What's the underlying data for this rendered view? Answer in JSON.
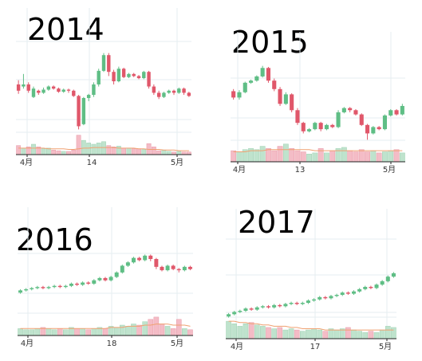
{
  "colors": {
    "up": "#5fbe85",
    "down": "#e0576a",
    "vol_up": "#bfe3cd",
    "vol_down": "#f4bcc6",
    "ma": "#f0a070",
    "grid": "#e6eef0",
    "axis": "#222222"
  },
  "chart_data": [
    {
      "type": "candlestick",
      "title": "2014",
      "x_tick_labels": [
        "4月",
        "14",
        "5月"
      ],
      "grid": true,
      "candles": [
        {
          "o": 30,
          "c": 24,
          "h": 34,
          "l": 21
        },
        {
          "o": 28,
          "c": 30,
          "h": 40,
          "l": 26
        },
        {
          "o": 30,
          "c": 24,
          "h": 32,
          "l": 22
        },
        {
          "o": 18,
          "c": 26,
          "h": 28,
          "l": 17
        },
        {
          "o": 24,
          "c": 22,
          "h": 25,
          "l": 20
        },
        {
          "o": 22,
          "c": 25,
          "h": 27,
          "l": 21
        },
        {
          "o": 25,
          "c": 28,
          "h": 29,
          "l": 24
        },
        {
          "o": 28,
          "c": 26,
          "h": 29,
          "l": 25
        },
        {
          "o": 26,
          "c": 23,
          "h": 27,
          "l": 22
        },
        {
          "o": 23,
          "c": 25,
          "h": 26,
          "l": 22
        },
        {
          "o": 25,
          "c": 24,
          "h": 26,
          "l": 22
        },
        {
          "o": 24,
          "c": 19,
          "h": 25,
          "l": 18
        },
        {
          "o": 19,
          "c": -10,
          "h": 20,
          "l": -13
        },
        {
          "o": -8,
          "c": 17,
          "h": 18,
          "l": -9
        },
        {
          "o": 17,
          "c": 20,
          "h": 21,
          "l": 14
        },
        {
          "o": 20,
          "c": 30,
          "h": 32,
          "l": 18
        },
        {
          "o": 30,
          "c": 43,
          "h": 45,
          "l": 28
        },
        {
          "o": 43,
          "c": 58,
          "h": 60,
          "l": 42
        },
        {
          "o": 58,
          "c": 42,
          "h": 60,
          "l": 38
        },
        {
          "o": 42,
          "c": 33,
          "h": 44,
          "l": 30
        },
        {
          "o": 33,
          "c": 45,
          "h": 47,
          "l": 32
        },
        {
          "o": 45,
          "c": 37,
          "h": 46,
          "l": 36
        },
        {
          "o": 37,
          "c": 40,
          "h": 41,
          "l": 36
        },
        {
          "o": 40,
          "c": 38,
          "h": 41,
          "l": 37
        },
        {
          "o": 38,
          "c": 36,
          "h": 39,
          "l": 35
        },
        {
          "o": 36,
          "c": 42,
          "h": 43,
          "l": 35
        },
        {
          "o": 42,
          "c": 28,
          "h": 43,
          "l": 26
        },
        {
          "o": 28,
          "c": 22,
          "h": 30,
          "l": 20
        },
        {
          "o": 22,
          "c": 18,
          "h": 24,
          "l": 16
        },
        {
          "o": 18,
          "c": 22,
          "h": 23,
          "l": 17
        },
        {
          "o": 22,
          "c": 24,
          "h": 25,
          "l": 21
        },
        {
          "o": 24,
          "c": 22,
          "h": 25,
          "l": 20
        },
        {
          "o": 22,
          "c": 26,
          "h": 27,
          "l": 21
        },
        {
          "o": 26,
          "c": 22,
          "h": 27,
          "l": 20
        },
        {
          "o": 22,
          "c": 19,
          "h": 23,
          "l": 18
        }
      ],
      "volume": [
        14,
        10,
        12,
        16,
        12,
        9,
        10,
        7,
        6,
        5,
        5,
        7,
        30,
        22,
        18,
        16,
        18,
        20,
        14,
        12,
        13,
        10,
        10,
        9,
        9,
        8,
        17,
        12,
        6,
        7,
        5,
        4,
        5,
        4,
        4
      ],
      "volume_ma": [
        10,
        10,
        10,
        10,
        10,
        10,
        9,
        9,
        9,
        9,
        8,
        8,
        9,
        10,
        10,
        11,
        11,
        11,
        11,
        11,
        10,
        10,
        10,
        10,
        9,
        9,
        8,
        8,
        8,
        7,
        7,
        7,
        6,
        6,
        6
      ]
    },
    {
      "type": "candlestick",
      "title": "2015",
      "x_tick_labels": [
        "4月",
        "13",
        "5月"
      ],
      "grid": true,
      "candles": [
        {
          "o": 38,
          "c": 32,
          "h": 40,
          "l": 30
        },
        {
          "o": 32,
          "c": 37,
          "h": 39,
          "l": 30
        },
        {
          "o": 37,
          "c": 46,
          "h": 47,
          "l": 36
        },
        {
          "o": 46,
          "c": 48,
          "h": 49,
          "l": 45
        },
        {
          "o": 48,
          "c": 52,
          "h": 53,
          "l": 47
        },
        {
          "o": 52,
          "c": 60,
          "h": 62,
          "l": 51
        },
        {
          "o": 60,
          "c": 48,
          "h": 61,
          "l": 46
        },
        {
          "o": 48,
          "c": 40,
          "h": 50,
          "l": 38
        },
        {
          "o": 40,
          "c": 26,
          "h": 42,
          "l": 24
        },
        {
          "o": 26,
          "c": 35,
          "h": 37,
          "l": 25
        },
        {
          "o": 35,
          "c": 20,
          "h": 36,
          "l": 18
        },
        {
          "o": 20,
          "c": 8,
          "h": 22,
          "l": 6
        },
        {
          "o": 8,
          "c": 0,
          "h": 9,
          "l": -2
        },
        {
          "o": 0,
          "c": 2,
          "h": 3,
          "l": -1
        },
        {
          "o": 2,
          "c": 8,
          "h": 9,
          "l": 1
        },
        {
          "o": 8,
          "c": 2,
          "h": 9,
          "l": 0
        },
        {
          "o": 2,
          "c": 6,
          "h": 7,
          "l": 1
        },
        {
          "o": 6,
          "c": 4,
          "h": 7,
          "l": 3
        },
        {
          "o": 4,
          "c": 18,
          "h": 20,
          "l": 3
        },
        {
          "o": 18,
          "c": 22,
          "h": 23,
          "l": 17
        },
        {
          "o": 22,
          "c": 20,
          "h": 23,
          "l": 18
        },
        {
          "o": 20,
          "c": 16,
          "h": 21,
          "l": 15
        },
        {
          "o": 16,
          "c": 6,
          "h": 17,
          "l": 5
        },
        {
          "o": 6,
          "c": -2,
          "h": 7,
          "l": -8
        },
        {
          "o": -2,
          "c": 4,
          "h": 5,
          "l": -3
        },
        {
          "o": 4,
          "c": 2,
          "h": 5,
          "l": 1
        },
        {
          "o": 2,
          "c": 15,
          "h": 16,
          "l": 1
        },
        {
          "o": 15,
          "c": 20,
          "h": 21,
          "l": 14
        },
        {
          "o": 20,
          "c": 16,
          "h": 21,
          "l": 15
        },
        {
          "o": 16,
          "c": 24,
          "h": 26,
          "l": 15
        }
      ],
      "volume": [
        10,
        9,
        11,
        12,
        11,
        14,
        12,
        10,
        14,
        16,
        12,
        10,
        9,
        7,
        8,
        12,
        8,
        10,
        12,
        13,
        10,
        9,
        11,
        9,
        10,
        8,
        9,
        10,
        11,
        8
      ],
      "volume_ma": [
        9,
        9,
        9,
        10,
        10,
        10,
        11,
        11,
        11,
        11,
        11,
        11,
        11,
        11,
        10,
        10,
        10,
        10,
        10,
        10,
        10,
        10,
        10,
        10,
        10,
        10,
        10,
        10,
        10,
        10
      ]
    },
    {
      "type": "candlestick",
      "title": "2016",
      "x_tick_labels": [
        "4月",
        "18",
        "5月"
      ],
      "grid": true,
      "candles": [
        {
          "o": 10,
          "c": 12,
          "h": 13,
          "l": 9
        },
        {
          "o": 12,
          "c": 13,
          "h": 14,
          "l": 11
        },
        {
          "o": 13,
          "c": 14,
          "h": 15,
          "l": 12
        },
        {
          "o": 14,
          "c": 15,
          "h": 16,
          "l": 13
        },
        {
          "o": 15,
          "c": 14,
          "h": 16,
          "l": 13
        },
        {
          "o": 14,
          "c": 15,
          "h": 16,
          "l": 13
        },
        {
          "o": 15,
          "c": 16,
          "h": 17,
          "l": 14
        },
        {
          "o": 16,
          "c": 15,
          "h": 17,
          "l": 14
        },
        {
          "o": 15,
          "c": 16,
          "h": 17,
          "l": 14
        },
        {
          "o": 16,
          "c": 18,
          "h": 19,
          "l": 15
        },
        {
          "o": 18,
          "c": 17,
          "h": 19,
          "l": 16
        },
        {
          "o": 17,
          "c": 19,
          "h": 20,
          "l": 16
        },
        {
          "o": 19,
          "c": 18,
          "h": 20,
          "l": 17
        },
        {
          "o": 18,
          "c": 21,
          "h": 22,
          "l": 17
        },
        {
          "o": 21,
          "c": 23,
          "h": 24,
          "l": 20
        },
        {
          "o": 23,
          "c": 21,
          "h": 24,
          "l": 20
        },
        {
          "o": 21,
          "c": 24,
          "h": 25,
          "l": 20
        },
        {
          "o": 24,
          "c": 28,
          "h": 29,
          "l": 23
        },
        {
          "o": 28,
          "c": 34,
          "h": 35,
          "l": 27
        },
        {
          "o": 34,
          "c": 37,
          "h": 38,
          "l": 33
        },
        {
          "o": 37,
          "c": 41,
          "h": 42,
          "l": 36
        },
        {
          "o": 41,
          "c": 39,
          "h": 42,
          "l": 38
        },
        {
          "o": 39,
          "c": 43,
          "h": 44,
          "l": 38
        },
        {
          "o": 43,
          "c": 40,
          "h": 44,
          "l": 38
        },
        {
          "o": 40,
          "c": 33,
          "h": 41,
          "l": 31
        },
        {
          "o": 33,
          "c": 30,
          "h": 34,
          "l": 29
        },
        {
          "o": 30,
          "c": 34,
          "h": 35,
          "l": 29
        },
        {
          "o": 34,
          "c": 31,
          "h": 35,
          "l": 30
        },
        {
          "o": 31,
          "c": 30,
          "h": 32,
          "l": 28
        },
        {
          "o": 30,
          "c": 33,
          "h": 34,
          "l": 29
        },
        {
          "o": 33,
          "c": 31,
          "h": 34,
          "l": 30
        }
      ],
      "volume": [
        6,
        5,
        5,
        6,
        7,
        6,
        5,
        6,
        5,
        7,
        6,
        6,
        5,
        6,
        7,
        6,
        8,
        7,
        9,
        8,
        10,
        9,
        12,
        14,
        16,
        10,
        8,
        6,
        14,
        6,
        5
      ],
      "volume_ma": [
        6,
        6,
        6,
        6,
        6,
        6,
        6,
        6,
        6,
        6,
        6,
        6,
        6,
        6,
        6,
        6,
        7,
        7,
        7,
        8,
        8,
        8,
        9,
        9,
        10,
        10,
        10,
        9,
        9,
        9,
        8
      ]
    },
    {
      "type": "candlestick",
      "title": "2017",
      "x_tick_labels": [
        "4月",
        "17",
        "5月"
      ],
      "grid": true,
      "candles": [
        {
          "o": -4,
          "c": -2,
          "h": -1,
          "l": -5
        },
        {
          "o": -2,
          "c": 0,
          "h": 1,
          "l": -3
        },
        {
          "o": 0,
          "c": 1,
          "h": 2,
          "l": -1
        },
        {
          "o": 1,
          "c": 3,
          "h": 4,
          "l": 0
        },
        {
          "o": 3,
          "c": 2,
          "h": 4,
          "l": 1
        },
        {
          "o": 2,
          "c": 4,
          "h": 5,
          "l": 1
        },
        {
          "o": 4,
          "c": 5,
          "h": 6,
          "l": 3
        },
        {
          "o": 5,
          "c": 4,
          "h": 6,
          "l": 3
        },
        {
          "o": 4,
          "c": 6,
          "h": 7,
          "l": 3
        },
        {
          "o": 6,
          "c": 5,
          "h": 7,
          "l": 4
        },
        {
          "o": 5,
          "c": 7,
          "h": 8,
          "l": 4
        },
        {
          "o": 7,
          "c": 8,
          "h": 9,
          "l": 6
        },
        {
          "o": 8,
          "c": 7,
          "h": 9,
          "l": 6
        },
        {
          "o": 7,
          "c": 8,
          "h": 9,
          "l": 6
        },
        {
          "o": 8,
          "c": 10,
          "h": 11,
          "l": 7
        },
        {
          "o": 10,
          "c": 11,
          "h": 12,
          "l": 9
        },
        {
          "o": 11,
          "c": 13,
          "h": 14,
          "l": 10
        },
        {
          "o": 13,
          "c": 12,
          "h": 14,
          "l": 11
        },
        {
          "o": 12,
          "c": 14,
          "h": 15,
          "l": 11
        },
        {
          "o": 14,
          "c": 15,
          "h": 16,
          "l": 13
        },
        {
          "o": 15,
          "c": 17,
          "h": 18,
          "l": 14
        },
        {
          "o": 17,
          "c": 16,
          "h": 18,
          "l": 15
        },
        {
          "o": 16,
          "c": 18,
          "h": 19,
          "l": 15
        },
        {
          "o": 18,
          "c": 20,
          "h": 21,
          "l": 17
        },
        {
          "o": 20,
          "c": 22,
          "h": 23,
          "l": 19
        },
        {
          "o": 22,
          "c": 21,
          "h": 23,
          "l": 20
        },
        {
          "o": 21,
          "c": 24,
          "h": 25,
          "l": 20
        },
        {
          "o": 24,
          "c": 27,
          "h": 28,
          "l": 23
        },
        {
          "o": 27,
          "c": 31,
          "h": 32,
          "l": 26
        },
        {
          "o": 31,
          "c": 34,
          "h": 35,
          "l": 30
        }
      ],
      "volume": [
        14,
        12,
        10,
        12,
        13,
        11,
        10,
        9,
        8,
        9,
        7,
        8,
        7,
        6,
        7,
        8,
        7,
        6,
        8,
        7,
        8,
        9,
        7,
        6,
        5,
        6,
        5,
        7,
        10,
        9
      ],
      "volume_ma": [
        14,
        14,
        13,
        13,
        12,
        12,
        11,
        11,
        10,
        10,
        10,
        9,
        9,
        8,
        8,
        8,
        8,
        7,
        7,
        7,
        7,
        7,
        7,
        7,
        7,
        7,
        7,
        7,
        7,
        7
      ]
    }
  ]
}
